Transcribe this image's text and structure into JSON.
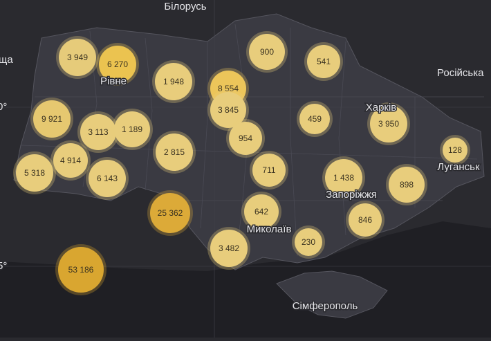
{
  "places": [
    "Білорусь",
    "Рівне",
    "Російська",
    "Харків",
    "Луганськ",
    "Запоріжжя",
    "Миколаїв",
    "Сімферополь",
    "ща",
    "0°",
    "5°"
  ],
  "bubbles": [
    "3 949",
    "6 270",
    "1 948",
    "8 554",
    "3 845",
    "900",
    "541",
    "9 921",
    "3 113",
    "1 189",
    "954",
    "459",
    "3 950",
    "128",
    "2 815",
    "4 914",
    "5 318",
    "6 143",
    "711",
    "1 438",
    "898",
    "25 362",
    "642",
    "846",
    "3 482",
    "230",
    "53 186"
  ]
}
